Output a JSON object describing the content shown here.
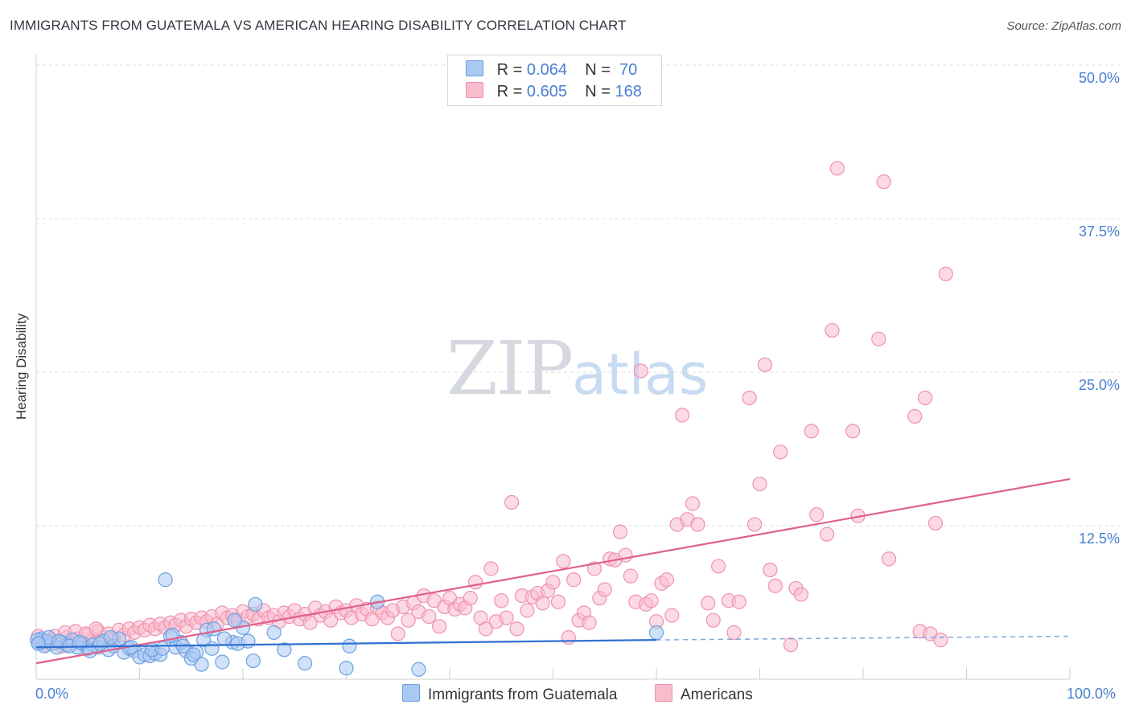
{
  "title": "IMMIGRANTS FROM GUATEMALA VS AMERICAN HEARING DISABILITY CORRELATION CHART",
  "source": "Source: ZipAtlas.com",
  "watermark": {
    "part1": "ZIP",
    "part2": "atlas"
  },
  "legend": {
    "r_label": "R =",
    "n_label": "N =",
    "rows": [
      {
        "r": "0.064",
        "n": "70",
        "color": "#a9c8f2",
        "edge": "#6fa0e0"
      },
      {
        "r": "0.605",
        "n": "168",
        "color": "#f9bccd",
        "edge": "#ee92ad"
      }
    ]
  },
  "bottom_legend": [
    "Immigrants from Guatemala",
    "Americans"
  ],
  "y_ticks": [
    "50.0%",
    "37.5%",
    "25.0%",
    "12.5%"
  ],
  "x_ticks": [
    "0.0%",
    "100.0%"
  ],
  "chart_data": {
    "type": "scatter",
    "title": "IMMIGRANTS FROM GUATEMALA VS AMERICAN HEARING DISABILITY CORRELATION CHART",
    "xlabel": "",
    "ylabel": "Hearing Disability",
    "xlim": [
      0,
      100
    ],
    "ylim": [
      0,
      51
    ],
    "grid": true,
    "series": [
      {
        "name": "Immigrants from Guatemala",
        "color": "#6fa0e0",
        "fill": "#a9c8f2",
        "trend": {
          "x": [
            0,
            60
          ],
          "y": [
            2.6,
            3.2
          ],
          "dash_to": 100,
          "dash_y": 3.5
        },
        "points": [
          [
            0.3,
            3.0
          ],
          [
            0.5,
            3.3
          ],
          [
            0.8,
            2.7
          ],
          [
            1.0,
            3.1
          ],
          [
            1.5,
            2.9
          ],
          [
            2.0,
            2.6
          ],
          [
            2.5,
            3.0
          ],
          [
            3.0,
            2.8
          ],
          [
            3.5,
            3.2
          ],
          [
            4.0,
            2.6
          ],
          [
            4.5,
            2.9
          ],
          [
            5.0,
            2.5
          ],
          [
            5.5,
            2.8
          ],
          [
            6.0,
            2.6
          ],
          [
            6.5,
            3.1
          ],
          [
            7.0,
            2.4
          ],
          [
            7.5,
            2.7
          ],
          [
            8.0,
            3.3
          ],
          [
            8.5,
            2.2
          ],
          [
            9.0,
            2.5
          ],
          [
            9.5,
            2.3
          ],
          [
            10.0,
            1.8
          ],
          [
            10.5,
            2.0
          ],
          [
            11.0,
            1.9
          ],
          [
            11.5,
            2.1
          ],
          [
            12.0,
            2.0
          ],
          [
            12.5,
            8.1
          ],
          [
            13.0,
            3.5
          ],
          [
            13.5,
            2.6
          ],
          [
            14.0,
            3.0
          ],
          [
            14.5,
            2.3
          ],
          [
            15.0,
            1.7
          ],
          [
            15.5,
            2.2
          ],
          [
            16.0,
            1.2
          ],
          [
            16.5,
            4.0
          ],
          [
            17.0,
            2.5
          ],
          [
            18.0,
            1.4
          ],
          [
            19.0,
            3.0
          ],
          [
            19.5,
            2.9
          ],
          [
            20.0,
            4.2
          ],
          [
            20.5,
            3.1
          ],
          [
            21.0,
            1.5
          ],
          [
            21.2,
            6.1
          ],
          [
            23.0,
            3.8
          ],
          [
            24.0,
            2.4
          ],
          [
            26.0,
            1.3
          ],
          [
            30.0,
            0.9
          ],
          [
            30.3,
            2.7
          ],
          [
            33.0,
            6.3
          ],
          [
            37.0,
            0.8
          ],
          [
            60.0,
            3.8
          ],
          [
            1.2,
            3.4
          ],
          [
            2.2,
            3.1
          ],
          [
            3.2,
            2.7
          ],
          [
            4.2,
            3.0
          ],
          [
            5.2,
            2.3
          ],
          [
            6.2,
            2.9
          ],
          [
            7.2,
            3.4
          ],
          [
            9.2,
            2.6
          ],
          [
            11.2,
            2.4
          ],
          [
            12.2,
            2.5
          ],
          [
            13.2,
            3.6
          ],
          [
            14.2,
            2.7
          ],
          [
            15.2,
            2.0
          ],
          [
            16.2,
            3.2
          ],
          [
            17.2,
            4.1
          ],
          [
            18.2,
            3.3
          ],
          [
            19.2,
            4.8
          ],
          [
            0.1,
            3.2
          ],
          [
            0.2,
            2.9
          ]
        ]
      },
      {
        "name": "Americans",
        "color": "#ee92ad",
        "fill": "#f9bccd",
        "trend": {
          "x": [
            0,
            100
          ],
          "y": [
            1.3,
            16.3
          ]
        },
        "points": [
          [
            0.2,
            3.5
          ],
          [
            0.5,
            3.0
          ],
          [
            1.0,
            2.8
          ],
          [
            1.5,
            3.2
          ],
          [
            2.0,
            3.0
          ],
          [
            2.5,
            2.7
          ],
          [
            3.0,
            3.4
          ],
          [
            3.5,
            3.1
          ],
          [
            4.0,
            3.3
          ],
          [
            4.5,
            2.9
          ],
          [
            5.0,
            3.6
          ],
          [
            5.5,
            3.2
          ],
          [
            6.0,
            3.9
          ],
          [
            6.5,
            3.4
          ],
          [
            7.0,
            3.7
          ],
          [
            7.5,
            3.3
          ],
          [
            8.0,
            4.0
          ],
          [
            8.5,
            3.6
          ],
          [
            9.0,
            4.1
          ],
          [
            9.5,
            3.8
          ],
          [
            10.0,
            4.2
          ],
          [
            10.5,
            4.0
          ],
          [
            11.0,
            4.4
          ],
          [
            11.5,
            4.1
          ],
          [
            12.0,
            4.5
          ],
          [
            12.5,
            4.2
          ],
          [
            13.0,
            4.6
          ],
          [
            13.5,
            4.4
          ],
          [
            14.0,
            4.8
          ],
          [
            14.5,
            4.3
          ],
          [
            15.0,
            4.9
          ],
          [
            15.5,
            4.6
          ],
          [
            16.0,
            5.0
          ],
          [
            16.5,
            4.7
          ],
          [
            17.0,
            5.1
          ],
          [
            17.5,
            4.5
          ],
          [
            18.0,
            5.4
          ],
          [
            18.5,
            5.0
          ],
          [
            19.0,
            5.2
          ],
          [
            19.5,
            4.8
          ],
          [
            20.0,
            5.5
          ],
          [
            20.5,
            5.1
          ],
          [
            21.0,
            5.3
          ],
          [
            21.5,
            4.9
          ],
          [
            22.0,
            5.6
          ],
          [
            22.5,
            5.0
          ],
          [
            23.0,
            5.2
          ],
          [
            23.5,
            4.7
          ],
          [
            24.0,
            5.4
          ],
          [
            24.5,
            5.1
          ],
          [
            25.0,
            5.6
          ],
          [
            25.5,
            4.9
          ],
          [
            26.0,
            5.3
          ],
          [
            26.5,
            4.6
          ],
          [
            27.0,
            5.8
          ],
          [
            27.5,
            5.2
          ],
          [
            28.0,
            5.5
          ],
          [
            28.5,
            4.8
          ],
          [
            29.0,
            5.9
          ],
          [
            29.5,
            5.4
          ],
          [
            30.0,
            5.6
          ],
          [
            30.5,
            5.0
          ],
          [
            31.0,
            6.0
          ],
          [
            31.5,
            5.3
          ],
          [
            32.0,
            5.7
          ],
          [
            32.5,
            4.9
          ],
          [
            33.0,
            5.8
          ],
          [
            33.5,
            5.4
          ],
          [
            34.0,
            5.0
          ],
          [
            34.5,
            5.6
          ],
          [
            35.0,
            3.7
          ],
          [
            35.5,
            5.9
          ],
          [
            36.0,
            4.8
          ],
          [
            36.5,
            6.2
          ],
          [
            37.0,
            5.5
          ],
          [
            37.5,
            6.8
          ],
          [
            38.0,
            5.1
          ],
          [
            38.5,
            6.4
          ],
          [
            39.0,
            4.3
          ],
          [
            39.5,
            5.9
          ],
          [
            40.0,
            6.6
          ],
          [
            40.5,
            5.7
          ],
          [
            41.0,
            6.1
          ],
          [
            41.5,
            5.8
          ],
          [
            42.0,
            6.6
          ],
          [
            42.5,
            7.9
          ],
          [
            43.0,
            5.0
          ],
          [
            43.5,
            4.1
          ],
          [
            44.0,
            9.0
          ],
          [
            44.5,
            4.7
          ],
          [
            45.0,
            6.4
          ],
          [
            45.5,
            5.0
          ],
          [
            46.0,
            14.4
          ],
          [
            46.5,
            4.1
          ],
          [
            47.0,
            6.8
          ],
          [
            47.5,
            5.6
          ],
          [
            48.0,
            6.7
          ],
          [
            48.5,
            7.0
          ],
          [
            49.0,
            6.2
          ],
          [
            49.5,
            7.2
          ],
          [
            50.0,
            7.9
          ],
          [
            50.5,
            6.3
          ],
          [
            51.0,
            9.6
          ],
          [
            51.5,
            3.4
          ],
          [
            52.0,
            8.1
          ],
          [
            52.5,
            4.8
          ],
          [
            53.0,
            5.4
          ],
          [
            53.5,
            4.6
          ],
          [
            54.0,
            9.0
          ],
          [
            54.5,
            6.6
          ],
          [
            55.0,
            7.3
          ],
          [
            55.5,
            9.8
          ],
          [
            56.0,
            9.7
          ],
          [
            56.5,
            12.0
          ],
          [
            57.0,
            10.1
          ],
          [
            57.5,
            8.4
          ],
          [
            58.0,
            6.3
          ],
          [
            58.5,
            25.1
          ],
          [
            59.0,
            6.1
          ],
          [
            59.5,
            6.4
          ],
          [
            60.0,
            4.7
          ],
          [
            60.5,
            7.8
          ],
          [
            61.0,
            8.1
          ],
          [
            61.5,
            5.2
          ],
          [
            62.0,
            12.6
          ],
          [
            62.5,
            21.5
          ],
          [
            63.0,
            13.0
          ],
          [
            63.5,
            14.3
          ],
          [
            64.0,
            12.6
          ],
          [
            65.0,
            6.2
          ],
          [
            65.5,
            4.8
          ],
          [
            66.0,
            9.2
          ],
          [
            67.0,
            6.4
          ],
          [
            67.5,
            3.8
          ],
          [
            68.0,
            6.3
          ],
          [
            69.0,
            22.9
          ],
          [
            69.5,
            12.6
          ],
          [
            70.0,
            15.9
          ],
          [
            70.5,
            25.6
          ],
          [
            71.0,
            8.9
          ],
          [
            71.5,
            7.6
          ],
          [
            72.0,
            18.5
          ],
          [
            73.0,
            2.8
          ],
          [
            73.5,
            7.4
          ],
          [
            74.0,
            6.9
          ],
          [
            75.0,
            20.2
          ],
          [
            75.5,
            13.4
          ],
          [
            76.5,
            11.8
          ],
          [
            77.0,
            28.4
          ],
          [
            77.5,
            41.6
          ],
          [
            79.0,
            20.2
          ],
          [
            79.5,
            13.3
          ],
          [
            81.5,
            27.7
          ],
          [
            82.0,
            40.5
          ],
          [
            82.5,
            9.8
          ],
          [
            85.0,
            21.4
          ],
          [
            85.5,
            3.9
          ],
          [
            86.0,
            22.9
          ],
          [
            86.5,
            3.7
          ],
          [
            87.0,
            12.7
          ],
          [
            87.5,
            3.2
          ],
          [
            88.0,
            33.0
          ],
          [
            1.8,
            3.5
          ],
          [
            2.8,
            3.8
          ],
          [
            3.8,
            3.9
          ],
          [
            4.8,
            3.7
          ],
          [
            5.8,
            4.1
          ]
        ]
      }
    ]
  }
}
